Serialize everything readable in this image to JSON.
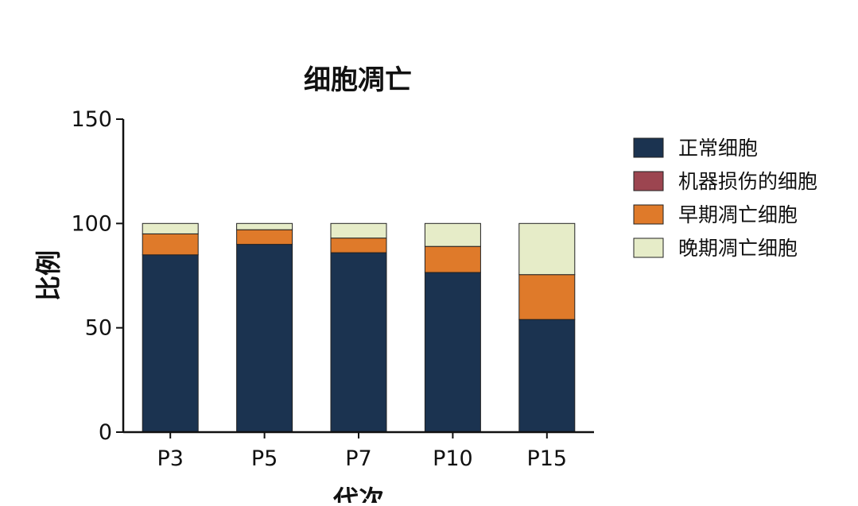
{
  "chart_data": {
    "type": "bar",
    "stacked": true,
    "title": "细胞凋亡",
    "xlabel": "代次",
    "ylabel": "比例",
    "categories": [
      "P3",
      "P5",
      "P7",
      "P10",
      "P15"
    ],
    "ylim": [
      0,
      150
    ],
    "yticks": [
      0,
      50,
      100,
      150
    ],
    "grid": false,
    "legend_position": "right",
    "series": [
      {
        "name": "正常细胞",
        "color": "#1b3350",
        "values": [
          85,
          90,
          86,
          76.5,
          54
        ]
      },
      {
        "name": "机器损伤的细胞",
        "color": "#9c4550",
        "values": [
          0,
          0,
          0,
          0,
          0
        ]
      },
      {
        "name": "早期凋亡细胞",
        "color": "#df7a2a",
        "values": [
          10,
          7,
          7,
          12.5,
          21.5
        ]
      },
      {
        "name": "晚期凋亡细胞",
        "color": "#e6ecc8",
        "values": [
          5,
          3,
          7,
          11,
          24.5
        ]
      }
    ]
  }
}
